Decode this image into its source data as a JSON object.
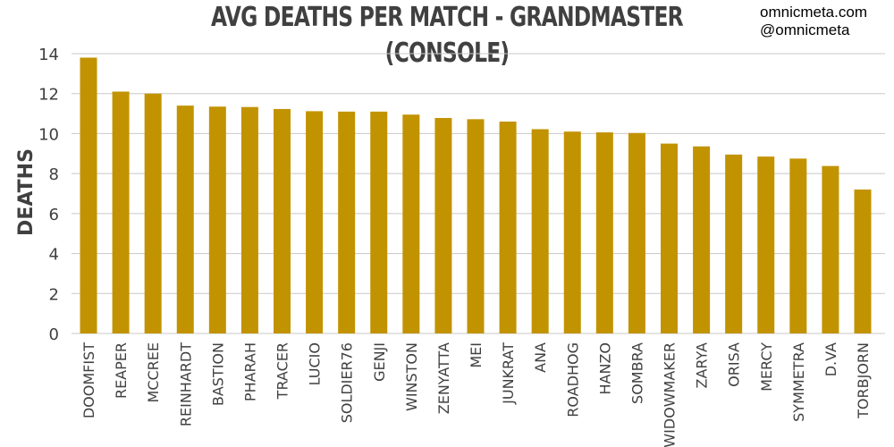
{
  "header": {
    "credit_site": "omnicmeta.com",
    "credit_handle": "@omnicmeta"
  },
  "chart_data": {
    "type": "bar",
    "title": "AVG DEATHS PER MATCH - GRANDMASTER (CONSOLE)",
    "xlabel": "",
    "ylabel": "DEATHS",
    "ylim": [
      0,
      14
    ],
    "yticks": [
      0,
      2,
      4,
      6,
      8,
      10,
      12,
      14
    ],
    "grid": true,
    "bar_color": "#c29300",
    "categories": [
      "DOOMFIST",
      "REAPER",
      "MCCREE",
      "REINHARDT",
      "BASTION",
      "PHARAH",
      "TRACER",
      "LUCIO",
      "SOLDIER76",
      "GENJI",
      "WINSTON",
      "ZENYATTA",
      "MEI",
      "JUNKRAT",
      "ANA",
      "ROADHOG",
      "HANZO",
      "SOMBRA",
      "WIDOWMAKER",
      "ZARYA",
      "ORISA",
      "MERCY",
      "SYMMETRA",
      "D.VA",
      "TORBJORN"
    ],
    "values": [
      13.8,
      12.1,
      12.0,
      11.4,
      11.35,
      11.33,
      11.23,
      11.12,
      11.1,
      11.1,
      10.95,
      10.78,
      10.72,
      10.6,
      10.22,
      10.1,
      10.06,
      10.03,
      9.5,
      9.36,
      8.95,
      8.85,
      8.75,
      8.38,
      7.2
    ]
  }
}
